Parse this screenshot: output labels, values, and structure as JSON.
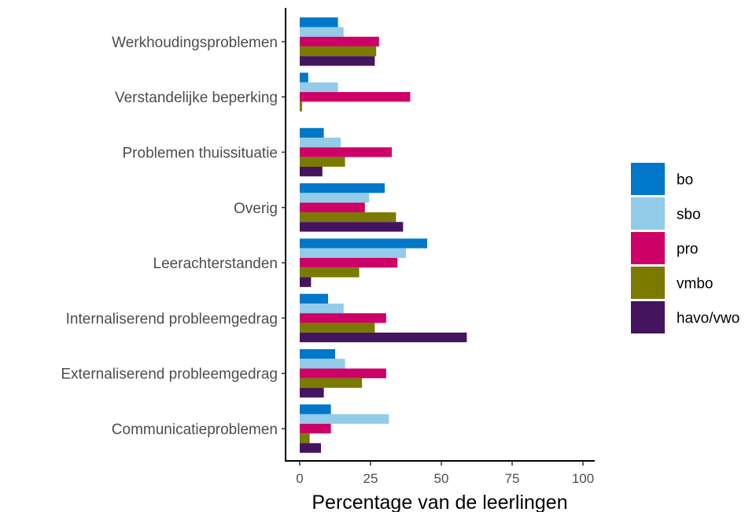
{
  "chart_data": {
    "type": "bar",
    "orientation": "horizontal",
    "xlabel": "Percentage van de leerlingen",
    "ylabel": "",
    "xlim": [
      0,
      100
    ],
    "xticks": [
      0,
      25,
      50,
      75,
      100
    ],
    "grid": false,
    "legend_position": "right",
    "categories": [
      "Communicatieproblemen",
      "Externaliserend probleemgedrag",
      "Internaliserend probleemgedrag",
      "Leerachterstanden",
      "Overig",
      "Problemen thuissituatie",
      "Verstandelijke beperking",
      "Werkhoudingsproblemen"
    ],
    "series": [
      {
        "name": "bo",
        "color": "#0077c8",
        "values": [
          11,
          12.5,
          10,
          45,
          30,
          8.5,
          3,
          13.5
        ]
      },
      {
        "name": "sbo",
        "color": "#92cce9",
        "values": [
          31.5,
          16,
          15.5,
          37.5,
          24.5,
          14.5,
          13.5,
          15.5
        ]
      },
      {
        "name": "pro",
        "color": "#cc0066",
        "values": [
          11,
          30.5,
          30.5,
          34.5,
          23,
          32.5,
          39,
          28
        ]
      },
      {
        "name": "vmbo",
        "color": "#7a7a00",
        "values": [
          3.5,
          22,
          26.5,
          21,
          34,
          16,
          0.8,
          27
        ]
      },
      {
        "name": "havo/vwo",
        "color": "#44145e",
        "values": [
          7.5,
          8.5,
          59,
          4,
          36.5,
          8,
          0,
          26.5
        ]
      }
    ]
  }
}
